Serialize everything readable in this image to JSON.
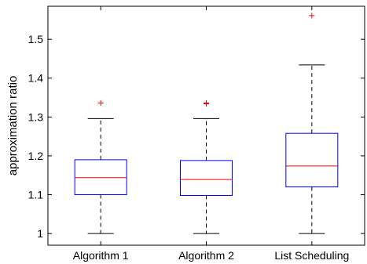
{
  "chart_data": {
    "type": "boxplot",
    "title": "",
    "xlabel": "",
    "ylabel": "approximation ratio",
    "ylim": [
      0.97,
      1.585
    ],
    "yticks": [
      1,
      1.1,
      1.2,
      1.3,
      1.4,
      1.5
    ],
    "ytick_labels": [
      "1",
      "1.1",
      "1.2",
      "1.3",
      "1.4",
      "1.5"
    ],
    "grid": false,
    "categories": [
      "Algorithm 1",
      "Algorithm 2",
      "List Scheduling"
    ],
    "boxes": [
      {
        "whisker_low": 1.0,
        "q1": 1.1,
        "median": 1.144,
        "q3": 1.19,
        "whisker_high": 1.296,
        "outliers": [
          1.336
        ]
      },
      {
        "whisker_low": 1.0,
        "q1": 1.098,
        "median": 1.139,
        "q3": 1.188,
        "whisker_high": 1.296,
        "outliers": [
          1.334,
          1.336
        ]
      },
      {
        "whisker_low": 1.0,
        "q1": 1.12,
        "median": 1.174,
        "q3": 1.258,
        "whisker_high": 1.434,
        "outliers": [
          1.561
        ]
      }
    ],
    "colors": {
      "box": "#0000ff",
      "median": "#ff0000",
      "whisker": "#000000",
      "outlier": "#ff0000",
      "axes": "#000000"
    }
  }
}
